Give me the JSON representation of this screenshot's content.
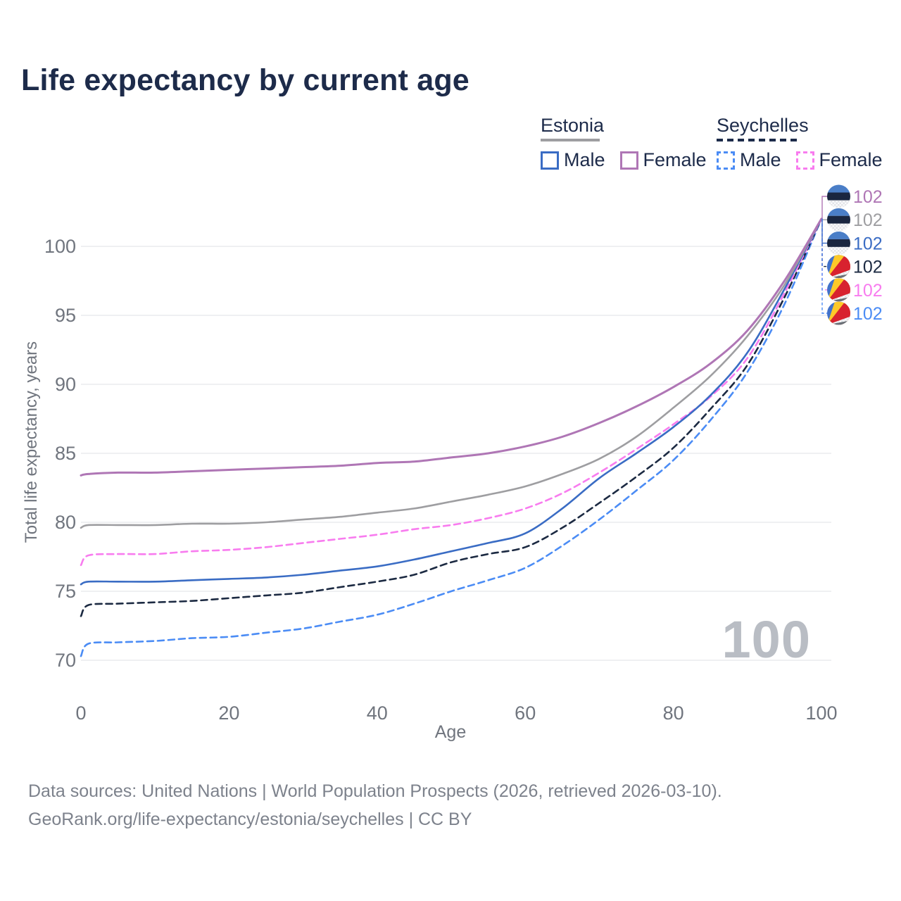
{
  "title": "Life expectancy by current age",
  "legend": {
    "estonia": {
      "title": "Estonia",
      "male": "Male",
      "female": "Female"
    },
    "seychelles": {
      "title": "Seychelles",
      "male": "Male",
      "female": "Female"
    }
  },
  "watermark": "100",
  "footer": {
    "line1": "Data sources: United Nations | World Population Prospects (2026, retrieved 2026-03-10).",
    "line2": "GeoRank.org/life-expectancy/estonia/seychelles | CC BY"
  },
  "colors": {
    "title_text": "#1d2b4a",
    "axis_text": "#70757e",
    "grid": "#eaebed",
    "footer_text": "#7d828c",
    "watermark": "#b9bdc4"
  },
  "chart_data": {
    "type": "line",
    "title": "Life expectancy by current age",
    "xlabel": "Age",
    "ylabel": "Total life expectancy, years",
    "xlim": [
      0,
      100
    ],
    "ylim": [
      70,
      102
    ],
    "x_ticks": [
      0,
      20,
      40,
      60,
      80,
      100
    ],
    "y_ticks": [
      70,
      75,
      80,
      85,
      90,
      95,
      100
    ],
    "grid": "horizontal",
    "legend_position": "top-right",
    "ages": [
      0,
      1,
      5,
      10,
      15,
      20,
      25,
      30,
      35,
      40,
      45,
      50,
      55,
      60,
      65,
      70,
      75,
      80,
      85,
      90,
      95,
      100
    ],
    "series": [
      {
        "name": "Estonia Female",
        "country": "Estonia",
        "sex": "Female",
        "color": "#af76b5",
        "style": "solid",
        "flag": "estonia",
        "label_row": 0,
        "end_label": "102",
        "values": [
          83.4,
          83.5,
          83.6,
          83.6,
          83.7,
          83.8,
          83.9,
          84.0,
          84.1,
          84.3,
          84.4,
          84.7,
          85.0,
          85.5,
          86.2,
          87.2,
          88.4,
          89.8,
          91.5,
          93.9,
          97.5,
          102
        ]
      },
      {
        "name": "Estonia Both sexes",
        "country": "Estonia",
        "sex": "Both",
        "color": "#9e9ea1",
        "style": "solid",
        "flag": "estonia",
        "label_row": 1,
        "end_label": "102",
        "values": [
          79.6,
          79.8,
          79.8,
          79.8,
          79.9,
          79.9,
          80.0,
          80.2,
          80.4,
          80.7,
          81.0,
          81.5,
          82.0,
          82.6,
          83.5,
          84.6,
          86.2,
          88.3,
          90.6,
          93.5,
          97.2,
          102
        ]
      },
      {
        "name": "Estonia Male",
        "country": "Estonia",
        "sex": "Male",
        "color": "#3a6cc4",
        "style": "solid",
        "flag": "estonia",
        "label_row": 2,
        "end_label": "102",
        "values": [
          75.5,
          75.7,
          75.7,
          75.7,
          75.8,
          75.9,
          76.0,
          76.2,
          76.5,
          76.8,
          77.3,
          77.9,
          78.5,
          79.2,
          81.0,
          83.2,
          85.0,
          86.9,
          89.2,
          92.3,
          96.9,
          102
        ]
      },
      {
        "name": "Seychelles Female",
        "country": "Seychelles",
        "sex": "Female",
        "color": "#f87cef",
        "style": "dashed",
        "flag": "seychelles",
        "label_row": 4,
        "end_label": "102",
        "values": [
          76.9,
          77.6,
          77.7,
          77.7,
          77.9,
          78.0,
          78.2,
          78.5,
          78.8,
          79.1,
          79.5,
          79.8,
          80.3,
          81.0,
          82.1,
          83.6,
          85.3,
          87.1,
          89.1,
          91.9,
          96.6,
          102
        ]
      },
      {
        "name": "Seychelles Both sexes",
        "country": "Seychelles",
        "sex": "Both",
        "color": "#1c2a42",
        "style": "dashed",
        "flag": "seychelles",
        "label_row": 3,
        "end_label": "102",
        "values": [
          73.2,
          74.0,
          74.1,
          74.2,
          74.3,
          74.5,
          74.7,
          74.9,
          75.3,
          75.7,
          76.2,
          77.1,
          77.7,
          78.2,
          79.6,
          81.4,
          83.3,
          85.4,
          88.2,
          91.4,
          96.3,
          102
        ]
      },
      {
        "name": "Seychelles Male",
        "country": "Seychelles",
        "sex": "Male",
        "color": "#4b8cf5",
        "style": "dashed",
        "flag": "seychelles",
        "label_row": 5,
        "end_label": "102",
        "values": [
          70.3,
          71.2,
          71.3,
          71.4,
          71.6,
          71.7,
          72.0,
          72.3,
          72.8,
          73.3,
          74.1,
          75.0,
          75.8,
          76.7,
          78.3,
          80.2,
          82.3,
          84.5,
          87.4,
          90.9,
          95.8,
          102
        ]
      }
    ]
  }
}
